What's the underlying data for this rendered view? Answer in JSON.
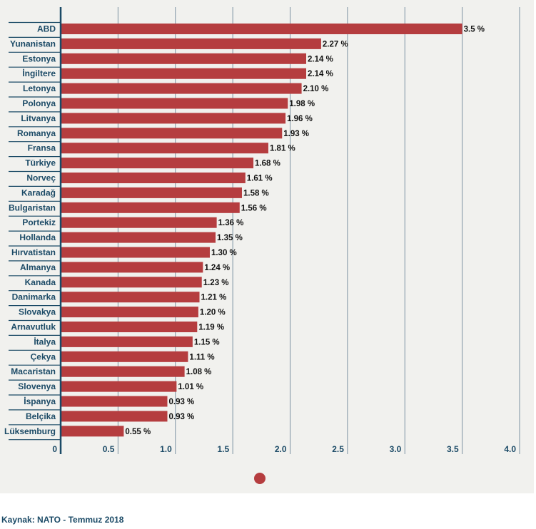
{
  "chart_data": {
    "type": "bar",
    "orientation": "horizontal",
    "categories": [
      "ABD",
      "Yunanistan",
      "Estonya",
      "İngiltere",
      "Letonya",
      "Polonya",
      "Litvanya",
      "Romanya",
      "Fransa",
      "Türkiye",
      "Norveç",
      "Karadağ",
      "Bulgaristan",
      "Portekiz",
      "Hollanda",
      "Hırvatistan",
      "Almanya",
      "Kanada",
      "Danimarka",
      "Slovakya",
      "Arnavutluk",
      "İtalya",
      "Çekya",
      "Macaristan",
      "Slovenya",
      "İspanya",
      "Belçika",
      "Lüksemburg"
    ],
    "values": [
      3.5,
      2.27,
      2.14,
      2.14,
      2.1,
      1.98,
      1.96,
      1.93,
      1.81,
      1.68,
      1.61,
      1.58,
      1.56,
      1.36,
      1.35,
      1.3,
      1.24,
      1.23,
      1.21,
      1.2,
      1.19,
      1.15,
      1.11,
      1.08,
      1.01,
      0.93,
      0.93,
      0.55
    ],
    "value_labels": [
      "3.5 %",
      "2.27 %",
      "2.14 %",
      "2.14 %",
      "2.10 %",
      "1.98 %",
      "1.96 %",
      "1.93 %",
      "1.81 %",
      "1.68 %",
      "1.61 %",
      "1.58 %",
      "1.56 %",
      "1.36 %",
      "1.35 %",
      "1.30 %",
      "1.24 %",
      "1.23 %",
      "1.21 %",
      "1.20 %",
      "1.19 %",
      "1.15 %",
      "1.11 %",
      "1.08 %",
      "1.01 %",
      "0.93 %",
      "0.93 %",
      "0.55 %"
    ],
    "x_ticks": [
      "0",
      "0.5",
      "1.0",
      "1.5",
      "2.0",
      "2.5",
      "3.0",
      "3.5",
      "4.0"
    ],
    "xlim": [
      0,
      4.0
    ],
    "grid": true,
    "bar_color": "#b53d3f",
    "title": "",
    "xlabel": "",
    "ylabel": ""
  },
  "source": "Kaynak: NATO - Temmuz 2018"
}
